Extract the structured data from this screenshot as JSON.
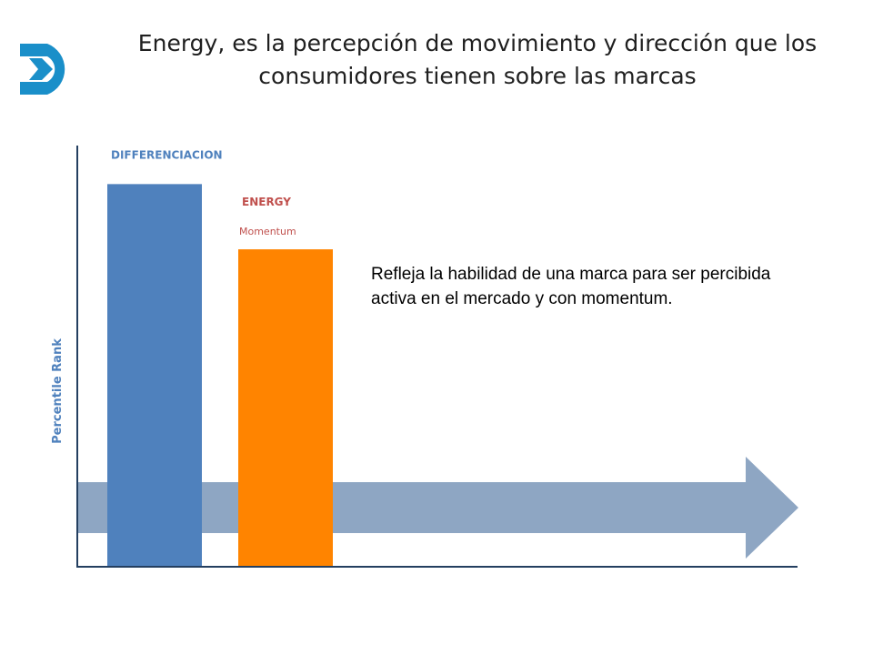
{
  "header": {
    "title": "Energy, es la percepción de movimiento y dirección que los consumidores tienen sobre las marcas",
    "logo_icon": "arrow-circle-icon"
  },
  "description": "Refleja la habilidad de una marca para ser percibida activa en el mercado y con momentum.",
  "colors": {
    "logo": "#1a8fc9",
    "differenciacion": "#4f81bd",
    "energy": "#ff8400",
    "arrow": "#8ea6c3",
    "axis": "#243f60",
    "ylabel": "#4f81bd",
    "energy_label": "#c0504d",
    "differenciacion_label": "#4f81bd"
  },
  "chart_data": {
    "type": "bar",
    "categories": [
      "DIFFERENCIACION",
      "ENERGY"
    ],
    "sublabels": [
      "",
      "Momentum"
    ],
    "values": [
      88,
      73
    ],
    "ylabel": "Percentile Rank",
    "ylim": [
      0,
      100
    ],
    "grid": false,
    "annotations": [
      "arrow-right"
    ]
  }
}
